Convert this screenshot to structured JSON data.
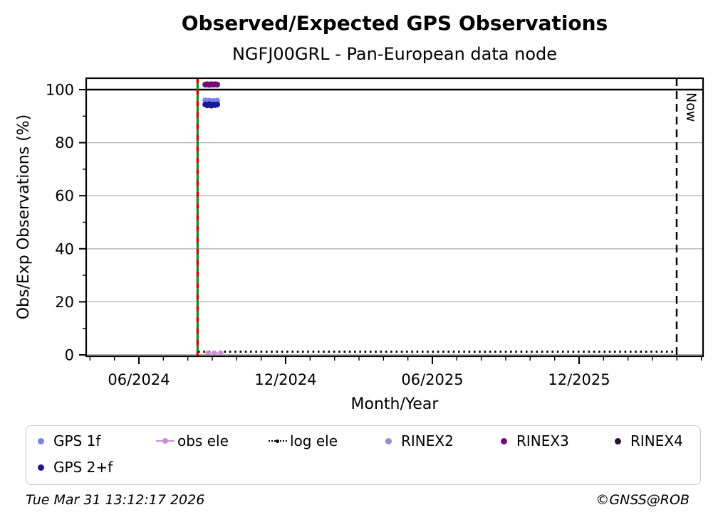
{
  "chart_data": {
    "type": "scatter",
    "title": "Observed/Expected GPS Observations",
    "subtitle": "NGFJ00GRL - Pan-European data node",
    "xlabel": "Month/Year",
    "ylabel": "Obs/Exp Observations (%)",
    "x_unit": "months since 2024-06-01",
    "xlim_mo": [
      -2.16,
      23.07
    ],
    "ylim": [
      -0.5,
      104.5
    ],
    "grid": "horizontal-light-gray",
    "yticks": [
      0,
      20,
      40,
      60,
      80,
      100
    ],
    "yticks_minor": [
      10,
      30,
      50,
      70,
      90
    ],
    "xticks": [
      {
        "label": "06/2024",
        "mo": 0
      },
      {
        "label": "12/2024",
        "mo": 6
      },
      {
        "label": "06/2025",
        "mo": 12
      },
      {
        "label": "12/2025",
        "mo": 18
      }
    ],
    "xminor_mo": {
      "from": -2,
      "to": 23,
      "skip": [
        0,
        6,
        12,
        18
      ]
    },
    "hline_solid_black_at": 100,
    "vlines": [
      {
        "id": "data-start-line",
        "mo": 2.4,
        "date_approx": "2024-08-13",
        "style": "solid green with red dashes",
        "colors": [
          "#168a16",
          "#dd0000"
        ]
      },
      {
        "id": "now-line",
        "mo": 21.99,
        "date": "2026-03-31",
        "style": "dashed black",
        "color": "#000000",
        "label": "Now"
      }
    ],
    "series": [
      {
        "id": "gps-1f",
        "name": "GPS 1f",
        "type": "scatter",
        "color": "#7b83ea",
        "dates_approx": "2024-08-24 to 2024-09-08",
        "points": [
          [
            2.72,
            95.9
          ],
          [
            2.8,
            95.5
          ],
          [
            2.88,
            95.8
          ],
          [
            2.96,
            95.4
          ],
          [
            3.04,
            95.7
          ],
          [
            3.12,
            95.5
          ],
          [
            3.2,
            95.8
          ]
        ]
      },
      {
        "id": "gps-2f",
        "name": "GPS 2+f",
        "type": "scatter",
        "color": "#181899",
        "dates_approx": "2024-08-24 to 2024-09-08",
        "points": [
          [
            2.72,
            94.4
          ],
          [
            2.8,
            94.1
          ],
          [
            2.88,
            94.5
          ],
          [
            2.96,
            94.0
          ],
          [
            3.04,
            94.3
          ],
          [
            3.12,
            94.2
          ],
          [
            3.2,
            94.4
          ]
        ]
      },
      {
        "id": "log-ele",
        "name": "log ele",
        "type": "dotted-line",
        "color": "#000000",
        "points": [
          [
            2.42,
            1.2
          ],
          [
            21.99,
            1.2
          ]
        ]
      },
      {
        "id": "obs-ele",
        "name": "obs ele",
        "type": "line",
        "color": "#c98fd4",
        "points": [
          [
            2.82,
            0.7
          ],
          [
            3.08,
            0.7
          ],
          [
            3.35,
            0.7
          ]
        ]
      },
      {
        "id": "rinex2",
        "name": "RINEX2",
        "type": "scatter",
        "color": "#958fc8",
        "points": []
      },
      {
        "id": "rinex3",
        "name": "RINEX3",
        "type": "scatter",
        "color": "#730b77",
        "dates_approx": "2024-08-24 to 2024-09-08",
        "points": [
          [
            2.72,
            101.9
          ],
          [
            2.8,
            102.0
          ],
          [
            2.88,
            101.8
          ],
          [
            2.96,
            102.0
          ],
          [
            3.04,
            101.9
          ],
          [
            3.12,
            102.0
          ],
          [
            3.2,
            101.9
          ]
        ]
      },
      {
        "id": "rinex4",
        "name": "RINEX4",
        "type": "scatter",
        "color": "#2b1030",
        "points": []
      }
    ],
    "now_label": "Now"
  },
  "legend": {
    "items": [
      {
        "id": "gps-1f",
        "label": "GPS 1f",
        "marker": "dot",
        "color": "#7b83ea"
      },
      {
        "id": "obs-ele",
        "label": "obs ele",
        "marker": "line-dot",
        "color": "#c98fd4"
      },
      {
        "id": "log-ele",
        "label": "log ele",
        "marker": "dotted-line",
        "color": "#000000"
      },
      {
        "id": "rinex2",
        "label": "RINEX2",
        "marker": "dot",
        "color": "#958fc8"
      },
      {
        "id": "rinex3",
        "label": "RINEX3",
        "marker": "dot",
        "color": "#730b77"
      },
      {
        "id": "rinex4",
        "label": "RINEX4",
        "marker": "dot",
        "color": "#2b1030"
      },
      {
        "id": "gps-2f",
        "label": "GPS 2+f",
        "marker": "dot",
        "color": "#181899"
      }
    ]
  },
  "footer": {
    "timestamp": "Tue Mar 31 13:12:17 2026",
    "copyright": "©GNSS@ROB"
  }
}
